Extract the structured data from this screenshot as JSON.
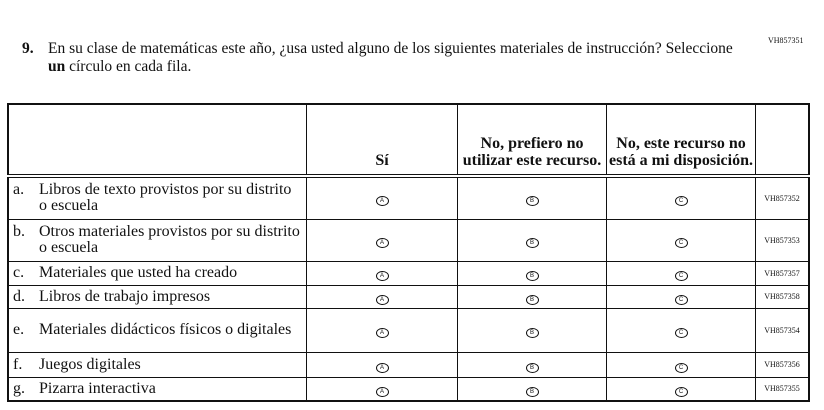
{
  "question": {
    "id": "VH857351",
    "number": "9.",
    "text_before": "En su clase de matemáticas este año, ¿usa usted alguno de los siguientes materiales de instrucción? Seleccione ",
    "text_bold": "un",
    "text_after": " círculo en cada fila."
  },
  "columns": [
    "Sí",
    "No, prefiero no utilizar este recurso.",
    "No, este recurso no está a mi disposición."
  ],
  "bubbles": [
    "A",
    "B",
    "C"
  ],
  "rows": [
    {
      "letter": "a.",
      "label": "Libros de texto provistos por su distrito o escuela",
      "code": "VH857352"
    },
    {
      "letter": "b.",
      "label": "Otros materiales provistos por su distrito o escuela",
      "code": "VH857353"
    },
    {
      "letter": "c.",
      "label": "Materiales que usted ha creado",
      "code": "VH857357"
    },
    {
      "letter": "d.",
      "label": "Libros de trabajo impresos",
      "code": "VH857358"
    },
    {
      "letter": "e.",
      "label": "Materiales didácticos físicos o digitales",
      "code": "VH857354"
    },
    {
      "letter": "f.",
      "label": "Juegos digitales",
      "code": "VH857356"
    },
    {
      "letter": "g.",
      "label": "Pizarra interactiva",
      "code": "VH857355"
    }
  ]
}
